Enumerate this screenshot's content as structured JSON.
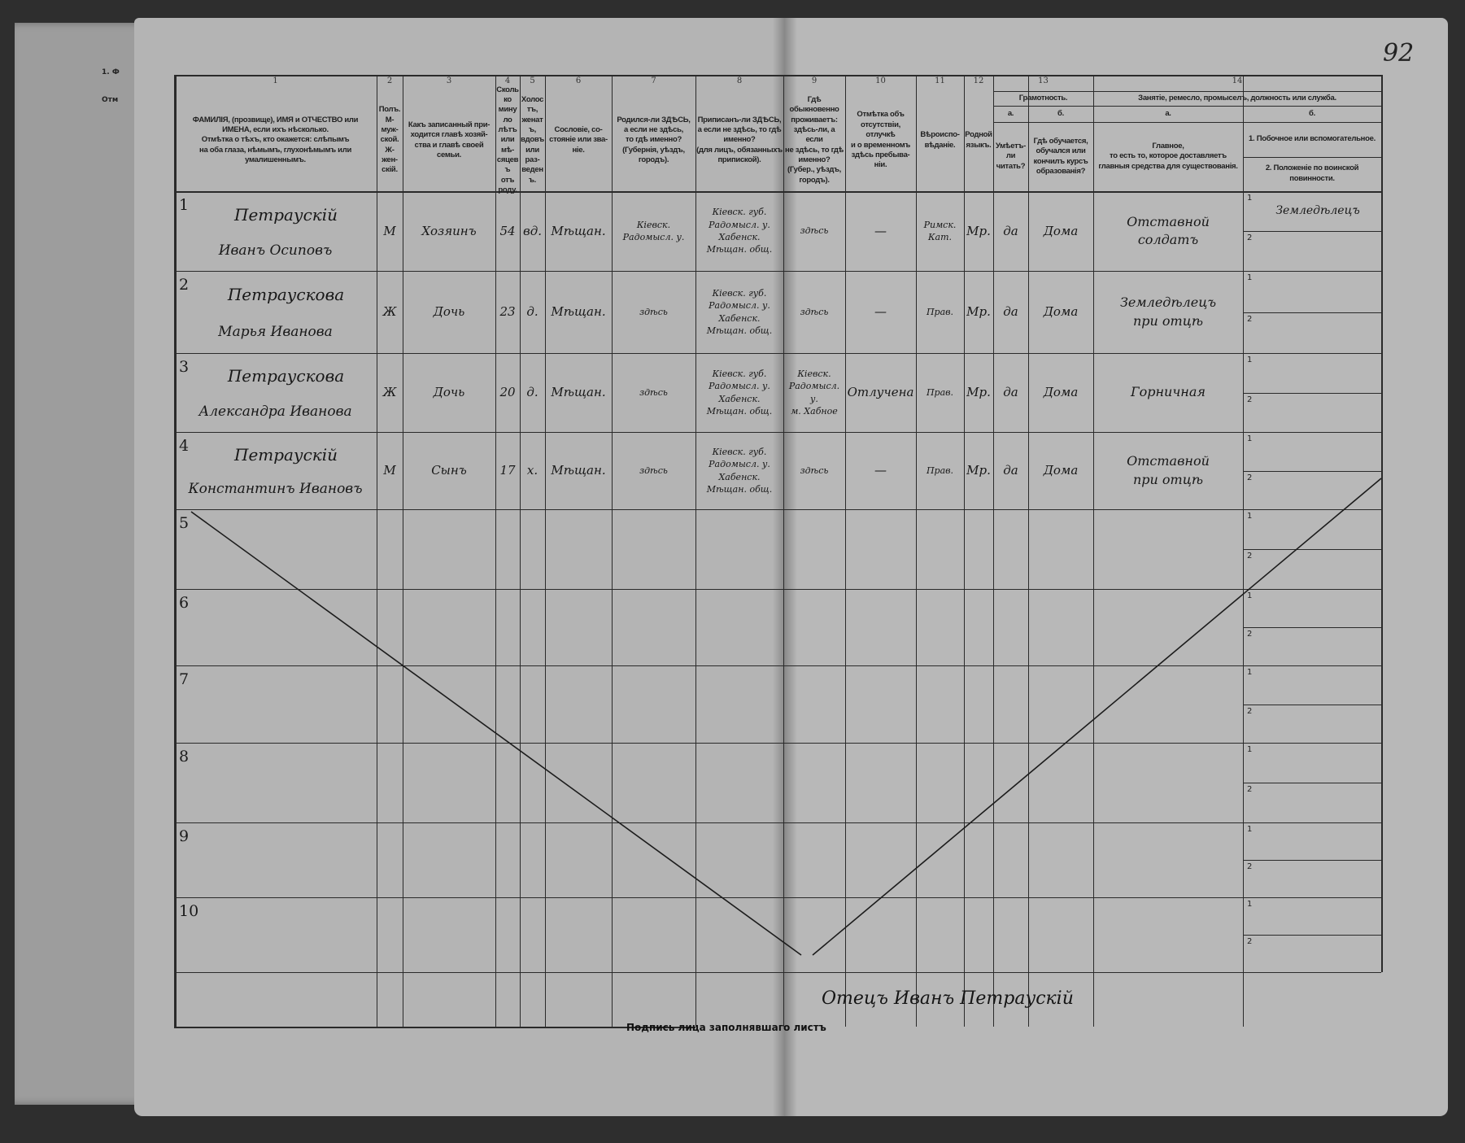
{
  "page_number": "92",
  "under_page": {
    "lines": [
      "1. Ф",
      "Отм"
    ]
  },
  "columns": [
    {
      "num": "1",
      "header": "ФАМИЛІЯ, (прозвище), ИМЯ и ОТЧЕСТВО или\nИМЕНА, если ихъ нѣсколько.\nОтмѣтка о тѣхъ, кто окажется: слѣпымъ\nна оба глаза, нѣмымъ, глухонѣмымъ или\nумалишеннымъ."
    },
    {
      "num": "2",
      "header": "Полъ.\nМ-муж-\nской.\nЖ-жен-\nскій."
    },
    {
      "num": "3",
      "header": "Какъ записанный при-\nходится главѣ хозяй-\nства и главѣ своей\nсемьи."
    },
    {
      "num": "4",
      "header": "Сколько\nминуло\nлѣтъ\nили мѣ-\nсяцевъ\nотъ роду."
    },
    {
      "num": "5",
      "header": "Холостъ,\nженатъ,\nвдовъ\nили раз-\nведенъ."
    },
    {
      "num": "6",
      "header": "Сословіе, со-\nстояніе или зва-\nніе."
    },
    {
      "num": "7",
      "header": "Родился-ли ЗДѢСЬ,\nа если не здѣсь,\nто гдѣ именно?\n(Губернія, уѣздъ, городъ)."
    },
    {
      "num": "8",
      "header": "Приписанъ-ли ЗДѢСЬ,\nа если не здѣсь, то гдѣ\nименно?\n(для лицъ, обязанныхъ\nприпиской)."
    },
    {
      "num": "9",
      "header": "Гдѣ обыкновенно\nпроживаетъ:\nздѣсь-ли, а если\nне здѣсь, то гдѣ\nименно?\n(Губер., уѣздъ, городъ)."
    },
    {
      "num": "10",
      "header": "Отмѣтка объ\nотсутствіи, отлучкѣ\nи о временномъ\nздѣсь пребыва-\nніи."
    },
    {
      "num": "11",
      "header": "Вѣроиспо-\nвѣданіе."
    },
    {
      "num": "12",
      "header": "Родной\nязыкъ."
    },
    {
      "num": "13",
      "group": "Грамотность.",
      "a": "а.",
      "a_header": "Умѣетъ-\nли\nчитать?",
      "b": "б.",
      "b_header": "Гдѣ обучается,\nобучался или\nкончилъ курсъ\nобразованія?"
    },
    {
      "num": "14",
      "group": "Занятіе, ремесло, промыселъ, должность или служба.",
      "a": "а.",
      "a_header": "Главное,\nто есть то, которое доставляетъ\nглавныя средства для существованія.",
      "b": "б.",
      "b1": "1. Побочное или вспомогательное.",
      "b2": "2. Положеніе по воинской повинности."
    }
  ],
  "rows": [
    {
      "n": "1",
      "surname": "Петраускій",
      "name": "Иванъ Осиповъ",
      "sex": "М",
      "relation": "Хозяинъ",
      "age": "54",
      "marital": "вд.",
      "estate": "Мѣщан.",
      "born": "Кіевск.\nРадомысл. у.",
      "registered": "Кіевск. губ.\nРадомысл. у.\nХабенск.\nМѣщан. общ.",
      "resides": "здѣсь",
      "absence": "—",
      "religion": "Римск.\nКат.",
      "language": "Мр.",
      "literate": "да",
      "education": "Дома",
      "occupation": "Отставной\nсолдатъ",
      "occ_b1": "Земледѣлецъ",
      "occ_b2": ""
    },
    {
      "n": "2",
      "surname": "Петраускова",
      "name": "Марья Иванова",
      "sex": "Ж",
      "relation": "Дочь",
      "age": "23",
      "marital": "д.",
      "estate": "Мѣщан.",
      "born": "здѣсь",
      "registered": "Кіевск. губ.\nРадомысл. у.\nХабенск.\nМѣщан. общ.",
      "resides": "здѣсь",
      "absence": "—",
      "religion": "Прав.",
      "language": "Мр.",
      "literate": "да",
      "education": "Дома",
      "occupation": "Земледѣлецъ\nпри отцѣ",
      "occ_b1": "",
      "occ_b2": ""
    },
    {
      "n": "3",
      "surname": "Петраускова",
      "name": "Александра Иванова",
      "sex": "Ж",
      "relation": "Дочь",
      "age": "20",
      "marital": "д.",
      "estate": "Мѣщан.",
      "born": "здѣсь",
      "registered": "Кіевск. губ.\nРадомысл. у.\nХабенск.\nМѣщан. общ.",
      "resides": "Кіевск.\nРадомысл. у.\nм. Хабное",
      "absence": "Отлучена",
      "religion": "Прав.",
      "language": "Мр.",
      "literate": "да",
      "education": "Дома",
      "occupation": "Горничная",
      "occ_b1": "",
      "occ_b2": ""
    },
    {
      "n": "4",
      "surname": "Петраускій",
      "name": "Константинъ Ивановъ",
      "sex": "М",
      "relation": "Сынъ",
      "age": "17",
      "marital": "х.",
      "estate": "Мѣщан.",
      "born": "здѣсь",
      "registered": "Кіевск. губ.\nРадомысл. у.\nХабенск.\nМѣщан. общ.",
      "resides": "здѣсь",
      "absence": "—",
      "religion": "Прав.",
      "language": "Мр.",
      "literate": "да",
      "education": "Дома",
      "occupation": "Отставной\nпри отцѣ",
      "occ_b1": "",
      "occ_b2": ""
    },
    {
      "n": "5"
    },
    {
      "n": "6"
    },
    {
      "n": "7"
    },
    {
      "n": "8"
    },
    {
      "n": "9"
    },
    {
      "n": "10"
    }
  ],
  "sub_labels": [
    "1",
    "2"
  ],
  "signature_label": "Подпись лица заполнявшаго листъ",
  "signature": "Отецъ Иванъ Петраускій"
}
